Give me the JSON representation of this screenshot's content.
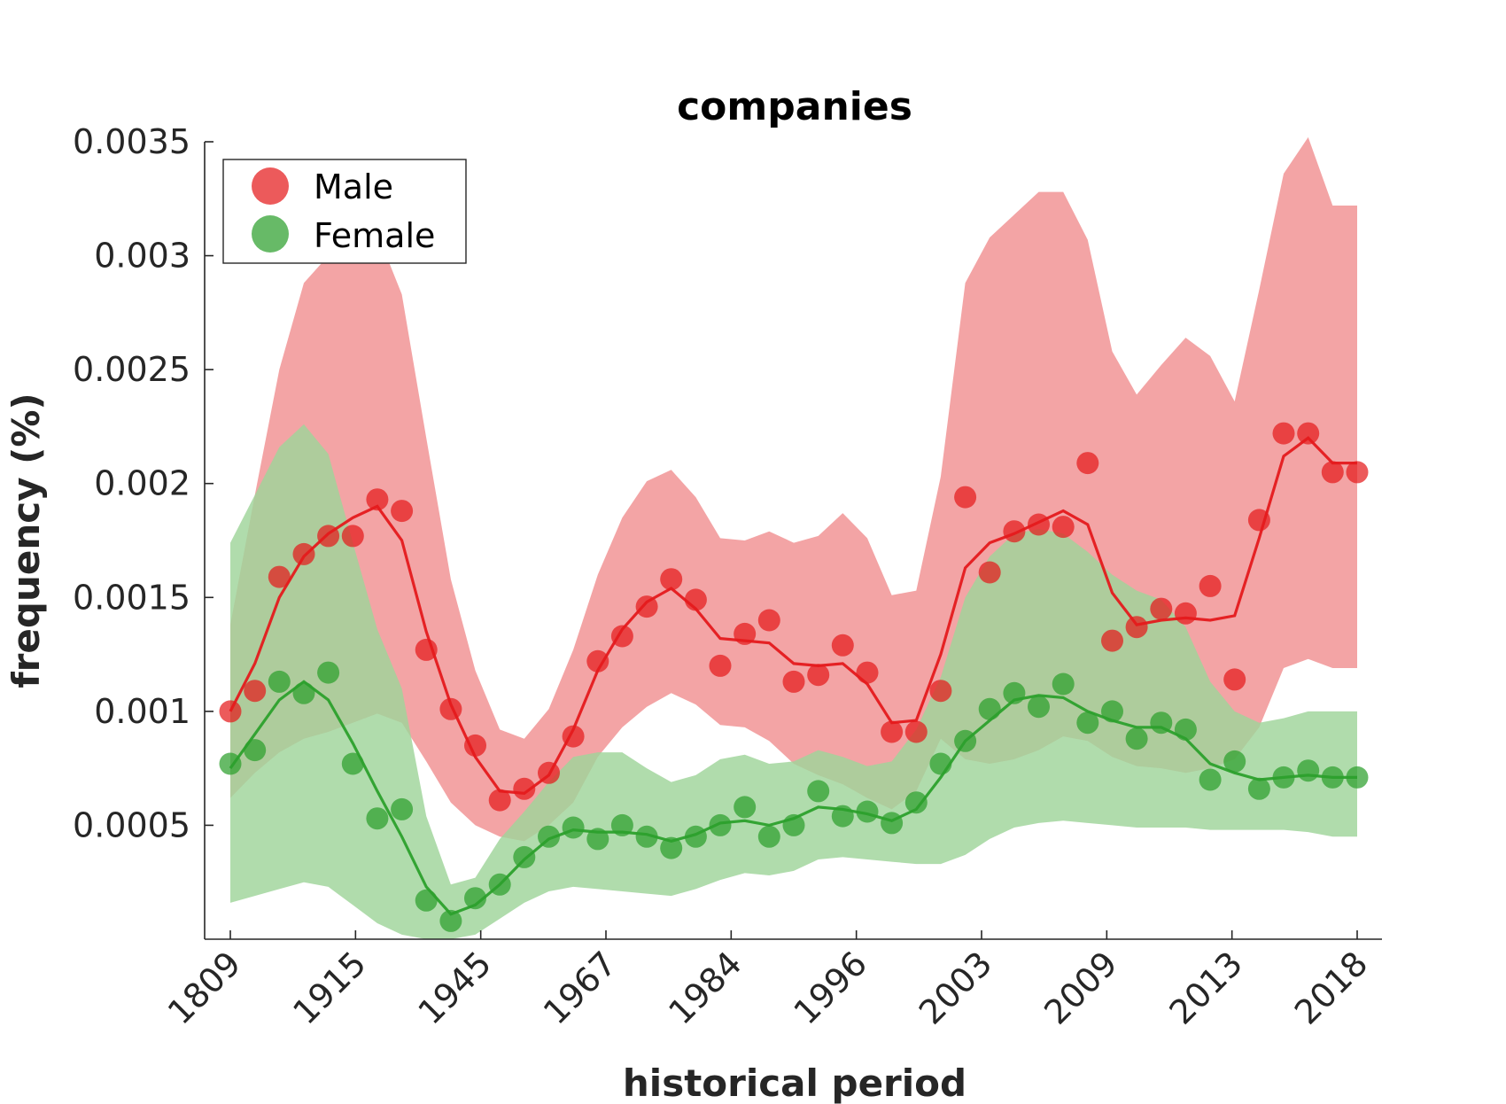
{
  "chart_data": {
    "type": "line",
    "title": "companies",
    "xlabel": "historical period",
    "ylabel": "frequency (%)",
    "ylim": [
      0.0,
      0.0035
    ],
    "y_ticks": [
      0.0005,
      0.001,
      0.0015,
      0.002,
      0.0025,
      0.003,
      0.0035
    ],
    "y_tick_labels": [
      "0.0005",
      "0.001",
      "0.0015",
      "0.002",
      "0.0025",
      "0.003",
      "0.0035"
    ],
    "x_tick_labels": [
      "1809",
      "1915",
      "1945",
      "1967",
      "1984",
      "1996",
      "2003",
      "2009",
      "2013",
      "2018"
    ],
    "point_count": 47,
    "grid": false,
    "legend_position": "top-left",
    "series": [
      {
        "name": "Male",
        "color": "#e41a1c",
        "band_color": "#ef8a8c",
        "points": [
          0.001,
          0.00109,
          0.00159,
          0.00169,
          0.00177,
          0.00177,
          0.00193,
          0.00188,
          0.00127,
          0.00101,
          0.00085,
          0.00061,
          0.00066,
          0.00073,
          0.00089,
          0.00122,
          0.00133,
          0.00146,
          0.00158,
          0.00149,
          0.0012,
          0.00134,
          0.0014,
          0.00113,
          0.00116,
          0.00129,
          0.00117,
          0.00091,
          0.00091,
          0.00109,
          0.00194,
          0.00161,
          0.00179,
          0.00182,
          0.00181,
          0.00209,
          0.00131,
          0.00137,
          0.00145,
          0.00143,
          0.00155,
          0.00114,
          0.00184,
          0.00222,
          0.00222,
          0.00205,
          0.00205
        ],
        "trend": [
          0.001,
          0.00121,
          0.0015,
          0.00168,
          0.00178,
          0.00185,
          0.0019,
          0.00175,
          0.00135,
          0.00103,
          0.0008,
          0.00065,
          0.00064,
          0.00072,
          0.00092,
          0.00118,
          0.00136,
          0.00148,
          0.00154,
          0.00145,
          0.00132,
          0.00131,
          0.0013,
          0.00121,
          0.0012,
          0.00121,
          0.00112,
          0.00095,
          0.00096,
          0.00125,
          0.00163,
          0.00174,
          0.00178,
          0.00183,
          0.00188,
          0.00182,
          0.00152,
          0.00138,
          0.0014,
          0.00141,
          0.0014,
          0.00142,
          0.00176,
          0.00212,
          0.0022,
          0.00209,
          0.00209
        ],
        "upper": [
          0.00138,
          0.00195,
          0.0025,
          0.00288,
          0.003,
          0.0031,
          0.0031,
          0.00283,
          0.0022,
          0.00158,
          0.00118,
          0.00092,
          0.00088,
          0.00101,
          0.00127,
          0.0016,
          0.00185,
          0.00201,
          0.00206,
          0.00194,
          0.00176,
          0.00175,
          0.00179,
          0.00174,
          0.00177,
          0.00187,
          0.00176,
          0.00151,
          0.00153,
          0.00203,
          0.00288,
          0.00308,
          0.00318,
          0.00328,
          0.00328,
          0.00307,
          0.00258,
          0.00239,
          0.00252,
          0.00264,
          0.00256,
          0.00236,
          0.00285,
          0.00336,
          0.00352,
          0.00322,
          0.00322
        ],
        "lower": [
          0.00062,
          0.00073,
          0.00082,
          0.00088,
          0.00091,
          0.00095,
          0.00099,
          0.00095,
          0.00078,
          0.0006,
          0.0005,
          0.00045,
          0.00043,
          0.0005,
          0.0006,
          0.0008,
          0.00093,
          0.00102,
          0.00108,
          0.00103,
          0.00094,
          0.00093,
          0.00087,
          0.00077,
          0.00072,
          0.00068,
          0.00062,
          0.00057,
          0.00065,
          0.00088,
          0.00079,
          0.00077,
          0.00079,
          0.00083,
          0.00089,
          0.00087,
          0.0008,
          0.00076,
          0.00075,
          0.00073,
          0.00075,
          0.00079,
          0.00093,
          0.00119,
          0.00123,
          0.00119,
          0.00119
        ]
      },
      {
        "name": "Female",
        "color": "#2ca02c",
        "band_color": "#9fd49a",
        "points": [
          0.00077,
          0.00083,
          0.00113,
          0.00108,
          0.00117,
          0.00077,
          0.00053,
          0.00057,
          0.00017,
          8e-05,
          0.00018,
          0.00024,
          0.00036,
          0.00045,
          0.00049,
          0.00044,
          0.0005,
          0.00045,
          0.0004,
          0.00045,
          0.0005,
          0.00058,
          0.00045,
          0.0005,
          0.00065,
          0.00054,
          0.00056,
          0.00051,
          0.0006,
          0.00077,
          0.00087,
          0.00101,
          0.00108,
          0.00102,
          0.00112,
          0.00095,
          0.001,
          0.00088,
          0.00095,
          0.00092,
          0.0007,
          0.00078,
          0.00066,
          0.00071,
          0.00074,
          0.00071,
          0.00071
        ],
        "trend": [
          0.00075,
          0.0009,
          0.00105,
          0.00113,
          0.00105,
          0.00086,
          0.00065,
          0.00045,
          0.00023,
          0.00011,
          0.00015,
          0.00024,
          0.00035,
          0.00044,
          0.00048,
          0.00047,
          0.00047,
          0.00046,
          0.00043,
          0.00046,
          0.00051,
          0.00052,
          0.0005,
          0.00053,
          0.00058,
          0.00057,
          0.00055,
          0.00052,
          0.00057,
          0.00071,
          0.00087,
          0.00096,
          0.00105,
          0.00107,
          0.00106,
          0.001,
          0.00096,
          0.00093,
          0.00093,
          0.00088,
          0.00077,
          0.00073,
          0.0007,
          0.00071,
          0.00072,
          0.00071,
          0.00071
        ],
        "upper": [
          0.00174,
          0.00195,
          0.00216,
          0.00226,
          0.00213,
          0.00174,
          0.00136,
          0.0011,
          0.00054,
          0.00024,
          0.00027,
          0.00044,
          0.00056,
          0.00069,
          0.0008,
          0.00082,
          0.00082,
          0.00075,
          0.00069,
          0.00072,
          0.00079,
          0.00081,
          0.00077,
          0.00078,
          0.00083,
          0.0008,
          0.00076,
          0.00078,
          0.00092,
          0.00115,
          0.0015,
          0.00168,
          0.00178,
          0.0018,
          0.00178,
          0.0017,
          0.0016,
          0.00153,
          0.00149,
          0.00137,
          0.00113,
          0.001,
          0.00095,
          0.00097,
          0.001,
          0.001,
          0.001
        ],
        "lower": [
          0.00016,
          0.00019,
          0.00022,
          0.00025,
          0.00023,
          0.00015,
          7e-05,
          2e-05,
          0.0,
          0.0,
          2e-05,
          9e-05,
          0.00016,
          0.00021,
          0.00023,
          0.00022,
          0.00021,
          0.0002,
          0.00019,
          0.00022,
          0.00026,
          0.00029,
          0.00028,
          0.0003,
          0.00035,
          0.00036,
          0.00035,
          0.00034,
          0.00033,
          0.00033,
          0.00037,
          0.00044,
          0.00049,
          0.00051,
          0.00052,
          0.00051,
          0.0005,
          0.00049,
          0.00049,
          0.00049,
          0.00048,
          0.00048,
          0.00048,
          0.00048,
          0.00047,
          0.00045,
          0.00045
        ]
      }
    ]
  }
}
